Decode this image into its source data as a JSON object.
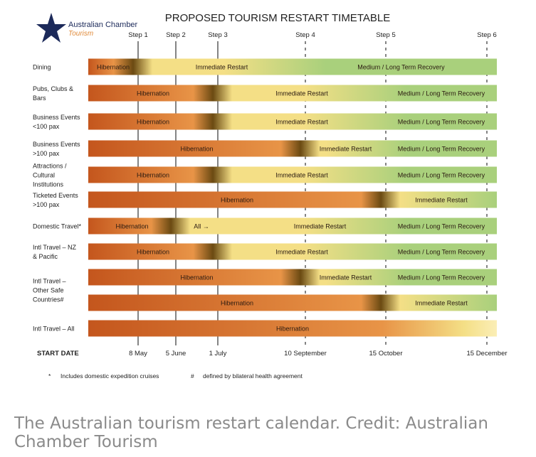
{
  "logo": {
    "name_line1": "Australian Chamber",
    "name_line2": "Tourism",
    "star_color": "#1c2a5a"
  },
  "caption": "The Australian tourism restart calendar. Credit: Australian Chamber Tourism",
  "colors": {
    "hibernation": "#c4561d",
    "hibernation_light": "#e89447",
    "immediate_restart": "#f4df86",
    "recovery": "#a9d07c",
    "transition_dark": "#6b4a12"
  },
  "chart_data": {
    "type": "gantt",
    "title": "PROPOSED TOURISM RESTART TIMETABLE",
    "start_date_label": "START DATE",
    "steps": [
      {
        "label": "Step 1",
        "date": "8 May",
        "line": "solid"
      },
      {
        "label": "Step 2",
        "date": "5 June",
        "line": "solid"
      },
      {
        "label": "Step 3",
        "date": "1 July",
        "line": "solid"
      },
      {
        "label": "Step 4",
        "date": "10 September",
        "line": "dashed"
      },
      {
        "label": "Step 5",
        "date": "15 October",
        "line": "dashed"
      },
      {
        "label": "Step 6",
        "date": "15 December",
        "line": "dashed"
      }
    ],
    "rows": [
      {
        "label": [
          "Dining"
        ],
        "hibernation_until": "Step 1",
        "restart_from": "Step 1",
        "recovery_from": "Step 4",
        "phase_labels": [
          "Hibernation",
          "Immediate Restart",
          "Medium / Long Term Recovery"
        ]
      },
      {
        "label": [
          "Pubs, Clubs &",
          "Bars"
        ],
        "hibernation_until": "Step 3",
        "restart_from": "Step 3",
        "recovery_from": "Step 5",
        "phase_labels": [
          "Hibernation",
          "Immediate Restart",
          "Medium / Long Term Recovery"
        ]
      },
      {
        "label": [
          "Business Events",
          "<100 pax"
        ],
        "hibernation_until": "Step 3",
        "restart_from": "Step 3",
        "recovery_from": "Step 5",
        "phase_labels": [
          "Hibernation",
          "Immediate Restart",
          "Medium / Long Term Recovery"
        ]
      },
      {
        "label": [
          "Business Events",
          ">100 pax"
        ],
        "hibernation_until": "Step 4",
        "restart_from": "Step 4",
        "recovery_from": "Step 5",
        "phase_labels": [
          "Hibernation",
          "Immediate Restart",
          "Medium / Long Term Recovery"
        ]
      },
      {
        "label": [
          "Attractions /",
          "Cultural",
          "Institutions"
        ],
        "hibernation_until": "Step 3",
        "restart_from": "Step 3",
        "recovery_from": "Step 5",
        "phase_labels": [
          "Hibernation",
          "Immediate Restart",
          "Medium / Long Term Recovery"
        ]
      },
      {
        "label": [
          "Ticketed Events",
          ">100 pax"
        ],
        "hibernation_until": "Step 5",
        "restart_from": "Step 5",
        "recovery_from": null,
        "phase_labels": [
          "Hibernation",
          "Immediate Restart"
        ]
      },
      {
        "label": [
          "Domestic Travel*"
        ],
        "hibernation_until": "Step 2",
        "restart_from": "Step 2",
        "recovery_from": "Step 5",
        "phase_labels": [
          "Hibernation",
          "Immediate Restart",
          "Medium / Long Term Recovery"
        ],
        "extra_label": "All →"
      },
      {
        "label": [
          "Intl Travel – NZ",
          "& Pacific"
        ],
        "hibernation_until": "Step 3",
        "restart_from": "Step 3",
        "recovery_from": "Step 5",
        "phase_labels": [
          "Hibernation",
          "Immediate Restart",
          "Medium / Long Term Recovery"
        ]
      },
      {
        "label": [
          "Intl Travel –",
          "Other Safe",
          "Countries#"
        ],
        "sub_bars": [
          {
            "hibernation_until": "Step 4",
            "restart_from": "Step 4",
            "recovery_from": "Step 5",
            "phase_labels": [
              "Hibernation",
              "Immediate Restart",
              "Medium / Long Term Recovery"
            ]
          },
          {
            "hibernation_until": "Step 5",
            "restart_from": "Step 5",
            "recovery_from": null,
            "phase_labels": [
              "Hibernation",
              "Immediate Restart"
            ]
          }
        ]
      },
      {
        "label": [
          "Intl Travel – All"
        ],
        "hibernation_until": "Step 6",
        "restart_from": null,
        "recovery_from": null,
        "phase_labels": [
          "Hibernation"
        ]
      }
    ],
    "footnotes": [
      {
        "mark": "*",
        "text": "Includes domestic expedition cruises"
      },
      {
        "mark": "#",
        "text": "defined by bilateral health agreement"
      }
    ]
  }
}
